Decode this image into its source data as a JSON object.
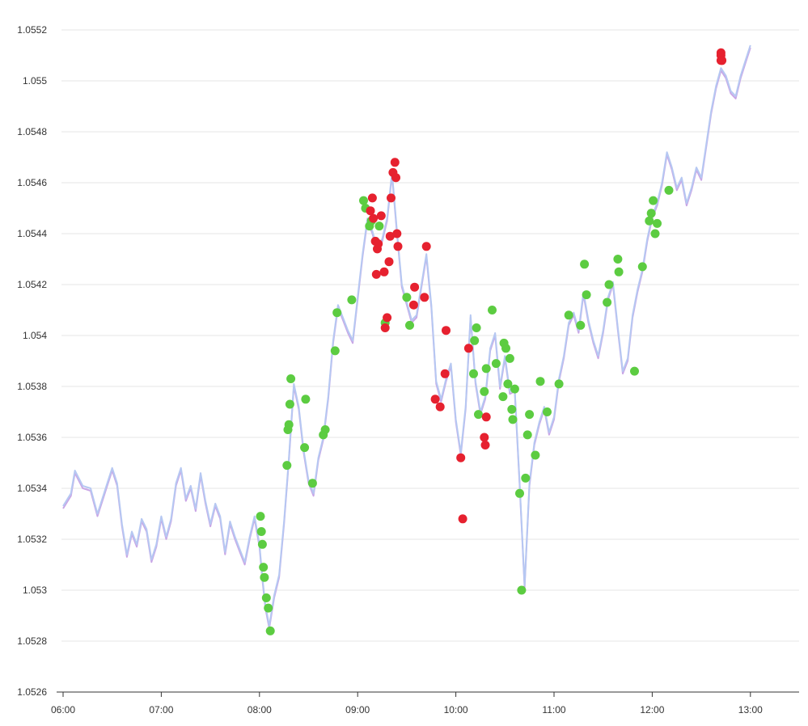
{
  "chart_data": {
    "type": "line",
    "title": "",
    "xlabel": "",
    "ylabel": "",
    "x_ticks": [
      "06:00",
      "07:00",
      "08:00",
      "09:00",
      "10:00",
      "11:00",
      "12:00",
      "13:00"
    ],
    "y_ticks": [
      "1.0526",
      "1.0528",
      "1.053",
      "1.0532",
      "1.0534",
      "1.0536",
      "1.0538",
      "1.054",
      "1.0542",
      "1.0544",
      "1.0546",
      "1.0548",
      "1.055",
      "1.0552"
    ],
    "xlim_hours": [
      6.0,
      13.5
    ],
    "ylim": [
      1.0526,
      1.05526
    ],
    "grid": "horizontal",
    "colors": {
      "bid_line": "#c9a6e6",
      "ask_line": "#b6c8f2",
      "buy_marker": "#5ccc41",
      "sell_marker": "#e6212f",
      "grid": "#e6e6e6",
      "axis": "#333333"
    },
    "series": [
      {
        "role": "line",
        "x": [
          6.0,
          6.08,
          6.12,
          6.2,
          6.28,
          6.35,
          6.4,
          6.45,
          6.5,
          6.55,
          6.6,
          6.65,
          6.7,
          6.75,
          6.8,
          6.85,
          6.9,
          6.95,
          7.0,
          7.05,
          7.1,
          7.15,
          7.2,
          7.25,
          7.3,
          7.35,
          7.4,
          7.45,
          7.5,
          7.55,
          7.6,
          7.65,
          7.7,
          7.75,
          7.8,
          7.85,
          7.9,
          7.95,
          8.0,
          8.03,
          8.06,
          8.1,
          8.15,
          8.2,
          8.25,
          8.3,
          8.35,
          8.4,
          8.45,
          8.5,
          8.55,
          8.6,
          8.65,
          8.7,
          8.75,
          8.8,
          8.85,
          8.9,
          8.95,
          9.0,
          9.05,
          9.1,
          9.15,
          9.2,
          9.25,
          9.3,
          9.35,
          9.4,
          9.45,
          9.5,
          9.55,
          9.6,
          9.65,
          9.7,
          9.75,
          9.8,
          9.85,
          9.9,
          9.95,
          10.0,
          10.05,
          10.1,
          10.15,
          10.2,
          10.25,
          10.3,
          10.35,
          10.4,
          10.45,
          10.5,
          10.55,
          10.6,
          10.65,
          10.7,
          10.75,
          10.8,
          10.85,
          10.9,
          10.95,
          11.0,
          11.05,
          11.1,
          11.15,
          11.2,
          11.25,
          11.3,
          11.35,
          11.4,
          11.45,
          11.5,
          11.55,
          11.6,
          11.65,
          11.7,
          11.75,
          11.8,
          11.85,
          11.9,
          11.95,
          12.0,
          12.05,
          12.1,
          12.15,
          12.2,
          12.25,
          12.3,
          12.35,
          12.4,
          12.45,
          12.5,
          12.55,
          12.6,
          12.65,
          12.7,
          12.75,
          12.8,
          12.85,
          12.9,
          12.95,
          13.0
        ],
        "values": [
          1.05333,
          1.05338,
          1.05347,
          1.05341,
          1.0534,
          1.0533,
          1.05336,
          1.05342,
          1.05348,
          1.05342,
          1.05326,
          1.05314,
          1.05323,
          1.05318,
          1.05328,
          1.05324,
          1.05312,
          1.05318,
          1.05329,
          1.05321,
          1.05328,
          1.05342,
          1.05348,
          1.05336,
          1.05341,
          1.05332,
          1.05346,
          1.05335,
          1.05326,
          1.05334,
          1.05329,
          1.05315,
          1.05327,
          1.05321,
          1.05316,
          1.05311,
          1.05321,
          1.05329,
          1.05318,
          1.05305,
          1.05294,
          1.05286,
          1.05298,
          1.05306,
          1.05327,
          1.05352,
          1.05381,
          1.05372,
          1.05355,
          1.05343,
          1.05338,
          1.05352,
          1.0536,
          1.05376,
          1.05398,
          1.05412,
          1.05407,
          1.05402,
          1.05398,
          1.05415,
          1.05432,
          1.05446,
          1.05441,
          1.05434,
          1.05438,
          1.05446,
          1.05464,
          1.05441,
          1.0542,
          1.05413,
          1.05406,
          1.05408,
          1.0542,
          1.05432,
          1.05412,
          1.05382,
          1.05375,
          1.05383,
          1.05389,
          1.05367,
          1.05354,
          1.05372,
          1.05408,
          1.05382,
          1.0537,
          1.05376,
          1.05395,
          1.05401,
          1.0538,
          1.05392,
          1.05378,
          1.05379,
          1.05342,
          1.05302,
          1.05342,
          1.05358,
          1.05366,
          1.05372,
          1.05362,
          1.05368,
          1.05383,
          1.05392,
          1.05405,
          1.05409,
          1.05402,
          1.05417,
          1.05406,
          1.05398,
          1.05392,
          1.05402,
          1.05415,
          1.05421,
          1.05403,
          1.05386,
          1.05391,
          1.05408,
          1.05418,
          1.05426,
          1.05438,
          1.05447,
          1.05452,
          1.0546,
          1.05472,
          1.05466,
          1.05458,
          1.05462,
          1.05452,
          1.05458,
          1.05466,
          1.05462,
          1.05475,
          1.05488,
          1.05498,
          1.05505,
          1.05502,
          1.05496,
          1.05494,
          1.05502,
          1.05508,
          1.05514
        ]
      },
      {
        "name": "",
        "role": "buy",
        "x": [
          8.01,
          8.02,
          8.03,
          8.04,
          8.05,
          8.07,
          8.09,
          8.11,
          8.28,
          8.29,
          8.3,
          8.31,
          8.32,
          8.46,
          8.47,
          8.54,
          8.65,
          8.67,
          8.77,
          8.79,
          8.94,
          9.06,
          9.08,
          9.12,
          9.14,
          9.22,
          9.28,
          9.5,
          9.53,
          10.18,
          10.19,
          10.21,
          10.23,
          10.29,
          10.31,
          10.37,
          10.41,
          10.48,
          10.49,
          10.51,
          10.53,
          10.55,
          10.57,
          10.58,
          10.6,
          10.65,
          10.67,
          10.71,
          10.73,
          10.75,
          10.81,
          10.86,
          10.93,
          11.05,
          11.15,
          11.27,
          11.31,
          11.33,
          11.54,
          11.56,
          11.65,
          11.66,
          11.82,
          11.9,
          11.97,
          11.99,
          12.01,
          12.03,
          12.05,
          12.17
        ],
        "values": [
          1.05329,
          1.05323,
          1.05318,
          1.05309,
          1.05305,
          1.05297,
          1.05293,
          1.05284,
          1.05349,
          1.05363,
          1.05365,
          1.05373,
          1.05383,
          1.05356,
          1.05375,
          1.05342,
          1.05361,
          1.05363,
          1.05394,
          1.05409,
          1.05414,
          1.05453,
          1.0545,
          1.05443,
          1.05445,
          1.05443,
          1.05405,
          1.05415,
          1.05404,
          1.05385,
          1.05398,
          1.05403,
          1.05369,
          1.05378,
          1.05387,
          1.0541,
          1.05389,
          1.05376,
          1.05397,
          1.05395,
          1.05381,
          1.05391,
          1.05371,
          1.05367,
          1.05379,
          1.05338,
          1.053,
          1.05344,
          1.05361,
          1.05369,
          1.05353,
          1.05382,
          1.0537,
          1.05381,
          1.05408,
          1.05404,
          1.05428,
          1.05416,
          1.05413,
          1.0542,
          1.0543,
          1.05425,
          1.05386,
          1.05427,
          1.05445,
          1.05448,
          1.05453,
          1.0544,
          1.05444,
          1.05457
        ]
      },
      {
        "name": "",
        "role": "sell",
        "x": [
          9.13,
          9.15,
          9.16,
          9.18,
          9.19,
          9.2,
          9.21,
          9.24,
          9.27,
          9.28,
          9.3,
          9.32,
          9.33,
          9.34,
          9.36,
          9.38,
          9.39,
          9.4,
          9.41,
          9.7,
          9.58,
          9.57,
          9.68,
          9.79,
          9.84,
          9.89,
          9.9,
          10.05,
          10.07,
          10.13,
          10.29,
          10.3,
          10.31,
          12.7,
          12.7,
          12.7,
          12.71
        ],
        "values": [
          1.05449,
          1.05454,
          1.05446,
          1.05437,
          1.05424,
          1.05434,
          1.05436,
          1.05447,
          1.05425,
          1.05403,
          1.05407,
          1.05429,
          1.05439,
          1.05454,
          1.05464,
          1.05468,
          1.05462,
          1.0544,
          1.05435,
          1.05435,
          1.05419,
          1.05412,
          1.05415,
          1.05375,
          1.05372,
          1.05385,
          1.05402,
          1.05352,
          1.05328,
          1.05395,
          1.0536,
          1.05357,
          1.05368,
          1.05508,
          1.0551,
          1.05511,
          1.05508
        ]
      }
    ]
  }
}
